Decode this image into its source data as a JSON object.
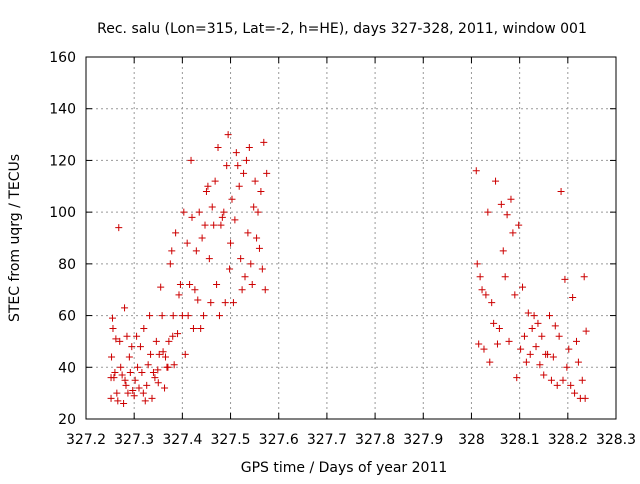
{
  "chart_data": {
    "type": "scatter",
    "title": "Rec. salu (Lon=315, Lat=-2, h=HE), days 327-328, 2011, window 001",
    "xlabel": "GPS time / Days of year 2011",
    "ylabel": "STEC from uqrg / TECUs",
    "xlim": [
      327.2,
      328.3
    ],
    "ylim": [
      20,
      160
    ],
    "x_ticks": [
      "327.2",
      "327.3",
      "327.4",
      "327.5",
      "327.6",
      "327.7",
      "327.8",
      "327.9",
      "328",
      "328.1",
      "328.2",
      "328.3"
    ],
    "y_ticks": [
      "20",
      "40",
      "60",
      "80",
      "100",
      "120",
      "140",
      "160"
    ],
    "grid": true,
    "grid_style": "dotted",
    "legend": "none",
    "marker": "+",
    "marker_color": "#cc0000",
    "series": [
      {
        "x": [
          327.252,
          327.252,
          327.253,
          327.255,
          327.256,
          327.258,
          327.26,
          327.262,
          327.264,
          327.266,
          327.268,
          327.27,
          327.272,
          327.275,
          327.278,
          327.28,
          327.281,
          327.283,
          327.285,
          327.287,
          327.29,
          327.292,
          327.295,
          327.297,
          327.3,
          327.302,
          327.305,
          327.307,
          327.31,
          327.313,
          327.316,
          327.319,
          327.32,
          327.323,
          327.326,
          327.329,
          327.332,
          327.334,
          327.337,
          327.34,
          327.343,
          327.346,
          327.349,
          327.35,
          327.352,
          327.355,
          327.358,
          327.36,
          327.363,
          327.365,
          327.368,
          327.37,
          327.372,
          327.375,
          327.378,
          327.38,
          327.381,
          327.383,
          327.386,
          327.39,
          327.393,
          327.396,
          327.4,
          327.403,
          327.406,
          327.41,
          327.412,
          327.415,
          327.418,
          327.42,
          327.423,
          327.426,
          327.429,
          327.432,
          327.435,
          327.438,
          327.441,
          327.444,
          327.447,
          327.45,
          327.453,
          327.456,
          327.459,
          327.462,
          327.465,
          327.468,
          327.471,
          327.474,
          327.477,
          327.48,
          327.483,
          327.486,
          327.489,
          327.492,
          327.495,
          327.498,
          327.5,
          327.503,
          327.506,
          327.509,
          327.512,
          327.515,
          327.518,
          327.521,
          327.524,
          327.527,
          327.53,
          327.533,
          327.536,
          327.539,
          327.542,
          327.545,
          327.548,
          327.551,
          327.554,
          327.557,
          327.56,
          327.563,
          327.566,
          327.569,
          327.572,
          327.575
        ],
        "y": [
          36,
          28,
          44,
          59,
          55,
          36,
          38,
          51,
          30,
          27,
          94,
          50,
          40,
          37,
          26,
          63,
          35,
          33,
          52,
          30,
          44,
          38,
          48,
          31,
          29,
          35,
          52,
          40,
          32,
          48,
          38,
          30,
          55,
          27,
          33,
          41,
          60,
          45,
          28,
          38,
          36,
          50,
          39,
          34,
          45,
          71,
          60,
          46,
          32,
          44,
          40,
          40,
          50,
          80,
          85,
          52,
          60,
          41,
          92,
          53,
          68,
          72,
          60,
          100,
          45,
          88,
          60,
          72,
          120,
          98,
          55,
          70,
          85,
          66,
          100,
          55,
          90,
          60,
          95,
          108,
          110,
          82,
          65,
          102,
          95,
          112,
          72,
          125,
          60,
          95,
          98,
          100,
          65,
          118,
          130,
          78,
          88,
          105,
          65,
          97,
          123,
          118,
          110,
          82,
          70,
          115,
          75,
          120,
          92,
          125,
          80,
          72,
          102,
          112,
          90,
          100,
          86,
          108,
          78,
          127,
          70,
          115
        ],
        "name": ""
      },
      {
        "x": [
          328.01,
          328.012,
          328.015,
          328.018,
          328.022,
          328.026,
          328.03,
          328.034,
          328.038,
          328.042,
          328.046,
          328.05,
          328.054,
          328.058,
          328.062,
          328.066,
          328.07,
          328.074,
          328.078,
          328.082,
          328.086,
          328.09,
          328.094,
          328.098,
          328.102,
          328.106,
          328.11,
          328.114,
          328.118,
          328.122,
          328.126,
          328.13,
          328.134,
          328.138,
          328.142,
          328.146,
          328.15,
          328.154,
          328.158,
          328.162,
          328.166,
          328.17,
          328.174,
          328.178,
          328.182,
          328.186,
          328.19,
          328.194,
          328.198,
          328.202,
          328.206,
          328.21,
          328.214,
          328.218,
          328.222,
          328.226,
          328.23,
          328.234,
          328.236,
          328.238
        ],
        "y": [
          116,
          80,
          49,
          75,
          70,
          47,
          68,
          100,
          42,
          65,
          57,
          112,
          49,
          55,
          103,
          85,
          75,
          99,
          50,
          105,
          92,
          68,
          36,
          95,
          47,
          71,
          52,
          42,
          61,
          45,
          55,
          60,
          48,
          57,
          41,
          52,
          37,
          45,
          45,
          60,
          35,
          44,
          56,
          33,
          52,
          108,
          35,
          74,
          40,
          47,
          33,
          67,
          30,
          50,
          42,
          28,
          35,
          75,
          28,
          54
        ],
        "name": ""
      }
    ]
  }
}
